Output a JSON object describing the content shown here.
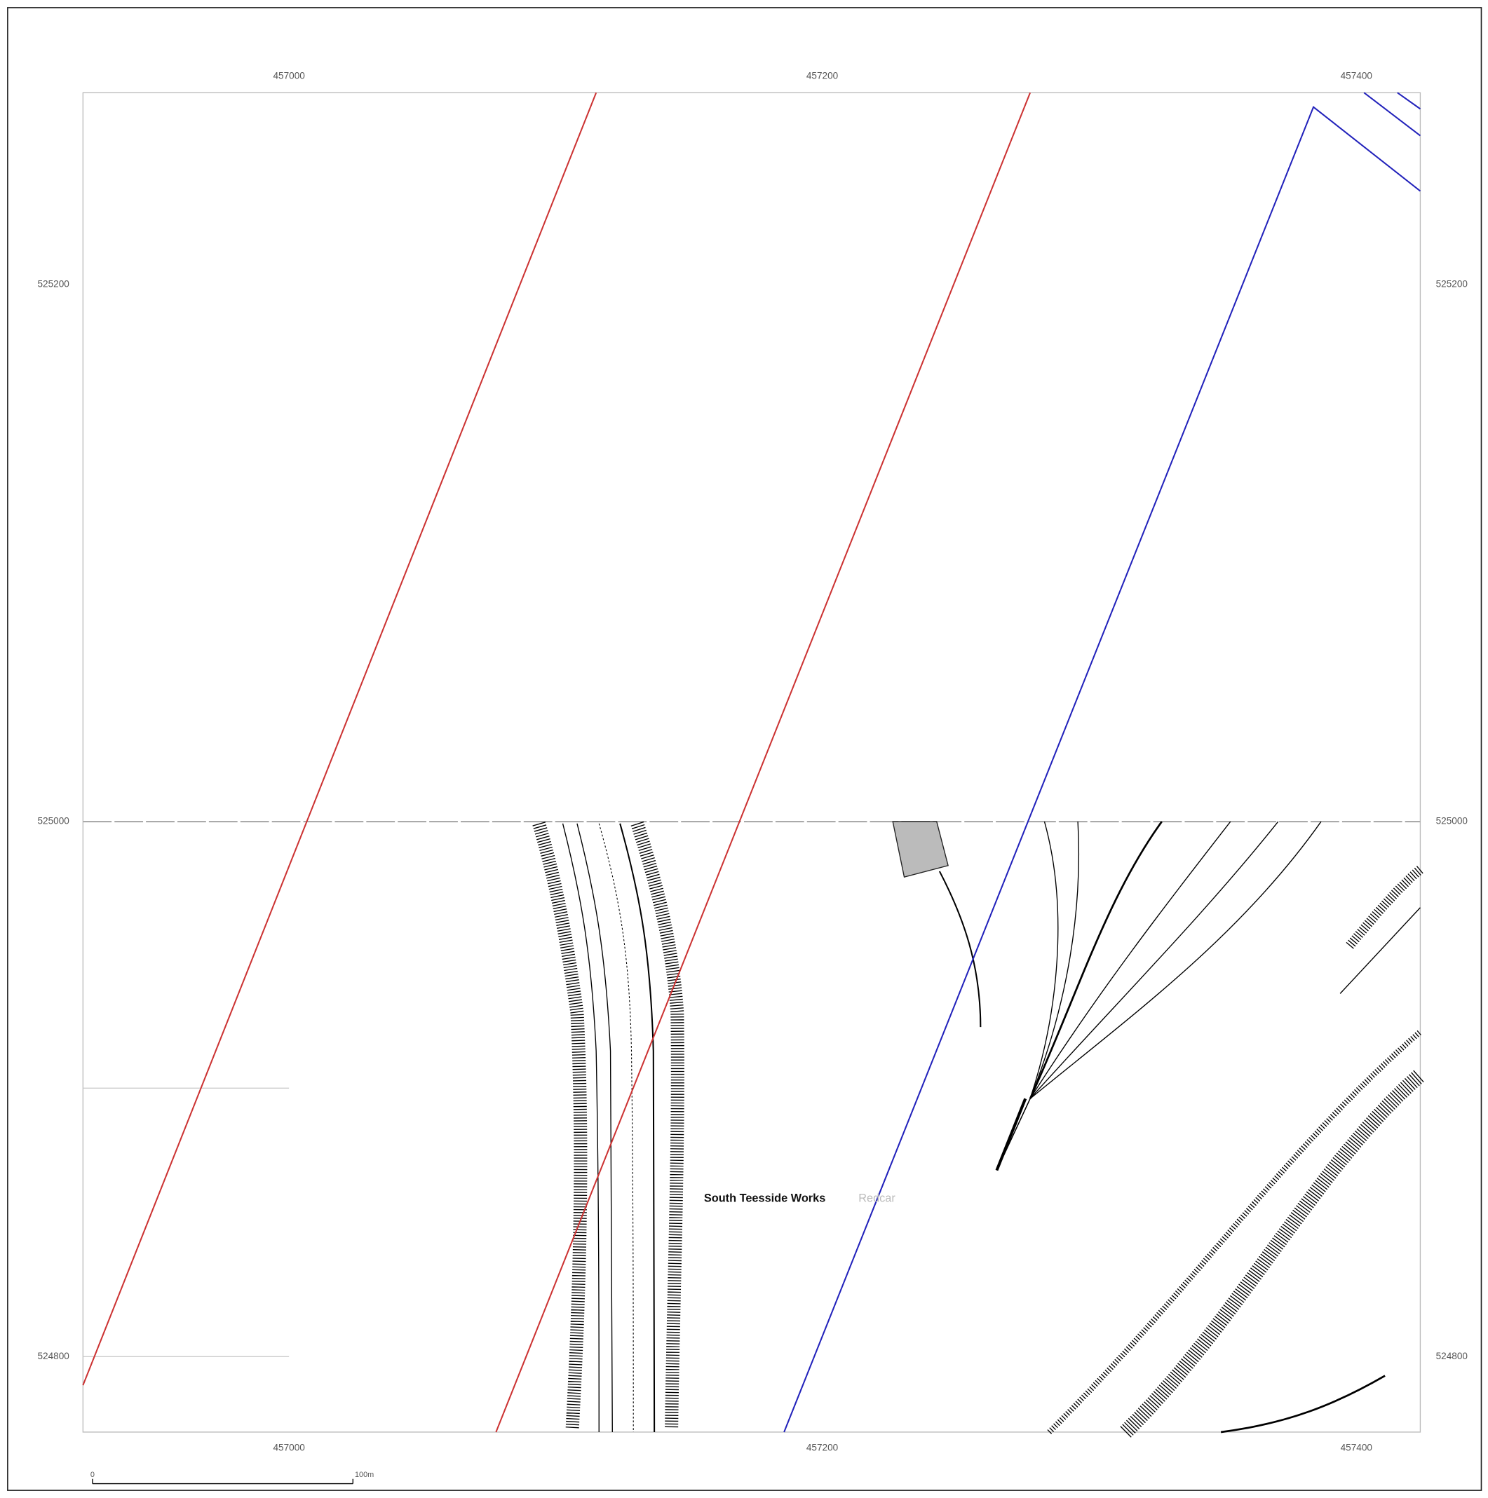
{
  "grid": {
    "eastings": [
      "457000",
      "457200",
      "457400"
    ],
    "northings": [
      "525200",
      "525000",
      "524800"
    ]
  },
  "scale_bar": {
    "start": "0",
    "end": "100m"
  },
  "labels": {
    "place": "South Teesside Works",
    "town": "Redcar"
  }
}
